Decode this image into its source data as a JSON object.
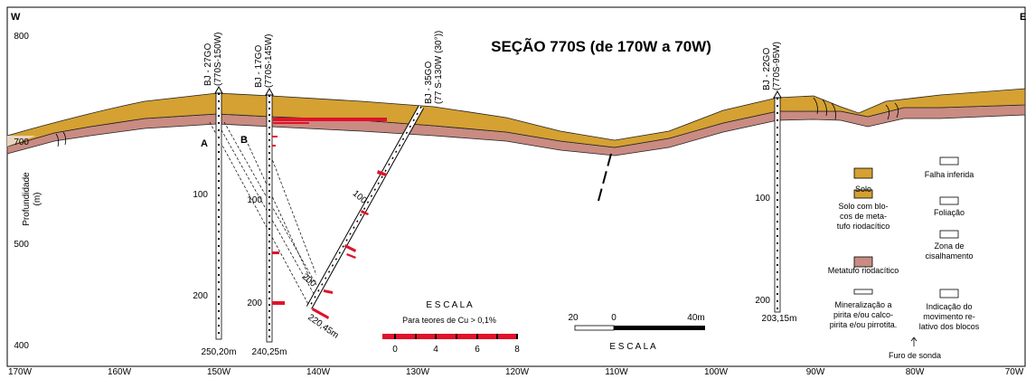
{
  "header": {
    "west": "W",
    "east": "E",
    "title": "SEÇÃO 770S (de 170W a 70W)"
  },
  "depth_axis": {
    "label": [
      "Profundidade",
      "(m)"
    ],
    "ticks": [
      "800",
      "700",
      "500",
      "400"
    ]
  },
  "x_axis": {
    "labels": [
      "170W",
      "160W",
      "150W",
      "140W",
      "130W",
      "120W",
      "110W",
      "100W",
      "90W",
      "80W",
      "70W"
    ]
  },
  "holes": [
    {
      "name": "BJ - 27GO",
      "coord": "(770S-150W)",
      "depths": [
        "100",
        "200"
      ],
      "total": "250,20m"
    },
    {
      "name": "BJ - 17GO",
      "coord": "(770S-145W)",
      "depths": [
        "100",
        "200"
      ],
      "total": "240,25m"
    },
    {
      "name": "BJ - 35GO",
      "coord": "(77 S-130W (30°))",
      "depths": [
        "100",
        "200"
      ],
      "total": "220,45m"
    },
    {
      "name": "BJ - 22GO",
      "coord": "(770S-95W)",
      "depths": [
        "100",
        "200"
      ],
      "total": "203,15m"
    }
  ],
  "markers": [
    "A",
    "B"
  ],
  "scale_cu": {
    "title": "E S C A L A",
    "subtitle": "Para teores de Cu > 0,1%",
    "ticks": [
      "0",
      "4",
      "6",
      "8"
    ]
  },
  "scale_m": {
    "ticks": [
      "20",
      "0",
      "40m"
    ],
    "title": "E S C A L A"
  },
  "legend": {
    "solo": [
      "Solo"
    ],
    "solo_blocos": [
      "Solo com blo-",
      "cos de meta-",
      "tufo riodacítico"
    ],
    "metatufo": [
      "Metatufo riodacítico"
    ],
    "mineral": [
      "Mineralização a",
      "pirita e/ou calco-",
      "pirita e/ou pirrotita."
    ],
    "falha": [
      "Falha  inferida"
    ],
    "foliacao": [
      "Foliação"
    ],
    "zona": [
      "Zona de",
      "cisalhamento"
    ],
    "movimento": [
      "Indicação do",
      "movimento re-",
      "lativo dos blocos"
    ],
    "furo": [
      "Furo de sonda"
    ]
  }
}
